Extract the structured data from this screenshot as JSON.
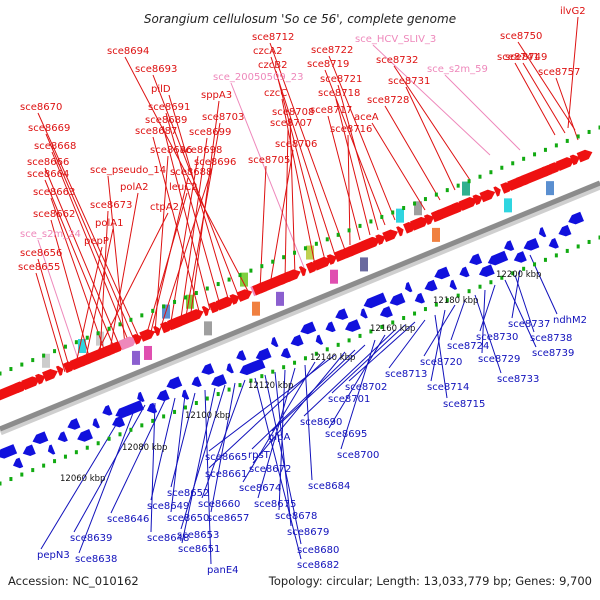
{
  "title": "Sorangium cellulosum 'So ce 56', complete genome",
  "footer": {
    "accession": "Accession: NC_010162",
    "details": "Topology: circular; Length: 13,033,779 bp; Genes: 9,700"
  },
  "colors": {
    "forward_gene": "#ee1111",
    "reverse_gene": "#1111dd",
    "special_gene": "#ee88bb",
    "backbone": "#8c8c8c",
    "tick": "#11aa11"
  },
  "ticks": [
    "12060 kbp",
    "12080 kbp",
    "12100 kbp",
    "12120 kbp",
    "12140 kbp",
    "12160 kbp",
    "12180 kbp",
    "12200 kbp"
  ],
  "forward_labels": [
    {
      "text": "ilvG2",
      "color": "#dd1111"
    },
    {
      "text": "sce8750",
      "color": "#dd1111"
    },
    {
      "text": "sce8749",
      "color": "#dd1111"
    },
    {
      "text": "sce8757",
      "color": "#dd1111"
    },
    {
      "text": "sce8741",
      "color": "#dd1111"
    },
    {
      "text": "sce_s2m_59",
      "color": "#ee88bb"
    },
    {
      "text": "sce_HCV_SLIV_3",
      "color": "#ee88bb"
    },
    {
      "text": "sce8732",
      "color": "#dd1111"
    },
    {
      "text": "sce8731",
      "color": "#dd1111"
    },
    {
      "text": "sce8728",
      "color": "#dd1111"
    },
    {
      "text": "aceA",
      "color": "#dd1111"
    },
    {
      "text": "sce8722",
      "color": "#dd1111"
    },
    {
      "text": "sce8719",
      "color": "#dd1111"
    },
    {
      "text": "sce8721",
      "color": "#dd1111"
    },
    {
      "text": "sce8718",
      "color": "#dd1111"
    },
    {
      "text": "sce8717",
      "color": "#dd1111"
    },
    {
      "text": "sce8716",
      "color": "#dd1111"
    },
    {
      "text": "sce8712",
      "color": "#dd1111"
    },
    {
      "text": "czcA2",
      "color": "#dd1111"
    },
    {
      "text": "czcB2",
      "color": "#dd1111"
    },
    {
      "text": "czcC",
      "color": "#dd1111"
    },
    {
      "text": "sce_20050509_23",
      "color": "#ee88bb"
    },
    {
      "text": "sce8708",
      "color": "#dd1111"
    },
    {
      "text": "sce8707",
      "color": "#dd1111"
    },
    {
      "text": "sce8706",
      "color": "#dd1111"
    },
    {
      "text": "sce8705",
      "color": "#dd1111"
    },
    {
      "text": "sce8694",
      "color": "#dd1111"
    },
    {
      "text": "sce8693",
      "color": "#dd1111"
    },
    {
      "text": "pilD",
      "color": "#dd1111"
    },
    {
      "text": "sce8691",
      "color": "#dd1111"
    },
    {
      "text": "sce8689",
      "color": "#dd1111"
    },
    {
      "text": "sce8687",
      "color": "#dd1111"
    },
    {
      "text": "sppA3",
      "color": "#dd1111"
    },
    {
      "text": "sce8703",
      "color": "#dd1111"
    },
    {
      "text": "sce8699",
      "color": "#dd1111"
    },
    {
      "text": "sce8698",
      "color": "#dd1111"
    },
    {
      "text": "sce8696",
      "color": "#dd1111"
    },
    {
      "text": "sce8686",
      "color": "#dd1111"
    },
    {
      "text": "sce8688",
      "color": "#dd1111"
    },
    {
      "text": "leuC2",
      "color": "#dd1111"
    },
    {
      "text": "sce8670",
      "color": "#dd1111"
    },
    {
      "text": "sce8669",
      "color": "#dd1111"
    },
    {
      "text": "sce8668",
      "color": "#dd1111"
    },
    {
      "text": "sce_pseudo_14",
      "color": "#dd1111"
    },
    {
      "text": "sce8666",
      "color": "#dd1111"
    },
    {
      "text": "sce8664",
      "color": "#dd1111"
    },
    {
      "text": "polA2",
      "color": "#dd1111"
    },
    {
      "text": "sce8663",
      "color": "#dd1111"
    },
    {
      "text": "sce8673",
      "color": "#dd1111"
    },
    {
      "text": "ctpA2",
      "color": "#dd1111"
    },
    {
      "text": "sce8662",
      "color": "#dd1111"
    },
    {
      "text": "polA1",
      "color": "#dd1111"
    },
    {
      "text": "sce_s2m_24",
      "color": "#ee88bb"
    },
    {
      "text": "pepP",
      "color": "#dd1111"
    },
    {
      "text": "sce8656",
      "color": "#dd1111"
    },
    {
      "text": "sce8655",
      "color": "#dd1111"
    }
  ],
  "reverse_labels": [
    {
      "text": "ndhM2",
      "color": "#1111bb"
    },
    {
      "text": "sce8737",
      "color": "#1111bb"
    },
    {
      "text": "sce8738",
      "color": "#1111bb"
    },
    {
      "text": "sce8739",
      "color": "#1111bb"
    },
    {
      "text": "sce8730",
      "color": "#1111bb"
    },
    {
      "text": "sce8729",
      "color": "#1111bb"
    },
    {
      "text": "sce8733",
      "color": "#1111bb"
    },
    {
      "text": "sce8724",
      "color": "#1111bb"
    },
    {
      "text": "sce8720",
      "color": "#1111bb"
    },
    {
      "text": "sce8714",
      "color": "#1111bb"
    },
    {
      "text": "sce8715",
      "color": "#1111bb"
    },
    {
      "text": "sce8713",
      "color": "#1111bb"
    },
    {
      "text": "sce8702",
      "color": "#1111bb"
    },
    {
      "text": "sce8701",
      "color": "#1111bb"
    },
    {
      "text": "sce8690",
      "color": "#1111bb"
    },
    {
      "text": "sce8695",
      "color": "#1111bb"
    },
    {
      "text": "sce8700",
      "color": "#1111bb"
    },
    {
      "text": "glpA",
      "color": "#1111bb"
    },
    {
      "text": "rpsT",
      "color": "#1111bb"
    },
    {
      "text": "sce8672",
      "color": "#1111bb"
    },
    {
      "text": "sce8665",
      "color": "#1111bb"
    },
    {
      "text": "sce8661",
      "color": "#1111bb"
    },
    {
      "text": "sce8674",
      "color": "#1111bb"
    },
    {
      "text": "sce8684",
      "color": "#1111bb"
    },
    {
      "text": "sce8675",
      "color": "#1111bb"
    },
    {
      "text": "sce8678",
      "color": "#1111bb"
    },
    {
      "text": "sce8679",
      "color": "#1111bb"
    },
    {
      "text": "sce8680",
      "color": "#1111bb"
    },
    {
      "text": "sce8682",
      "color": "#1111bb"
    },
    {
      "text": "sce8660",
      "color": "#1111bb"
    },
    {
      "text": "sce8657",
      "color": "#1111bb"
    },
    {
      "text": "sce8653",
      "color": "#1111bb"
    },
    {
      "text": "sce8651",
      "color": "#1111bb"
    },
    {
      "text": "panE4",
      "color": "#1111bb"
    },
    {
      "text": "sce8652",
      "color": "#1111bb"
    },
    {
      "text": "sce8650",
      "color": "#1111bb"
    },
    {
      "text": "sce8649",
      "color": "#1111bb"
    },
    {
      "text": "sce8646",
      "color": "#1111bb"
    },
    {
      "text": "sce8648",
      "color": "#1111bb"
    },
    {
      "text": "sce8639",
      "color": "#1111bb"
    },
    {
      "text": "sce8638",
      "color": "#1111bb"
    },
    {
      "text": "pepN3",
      "color": "#1111bb"
    }
  ]
}
